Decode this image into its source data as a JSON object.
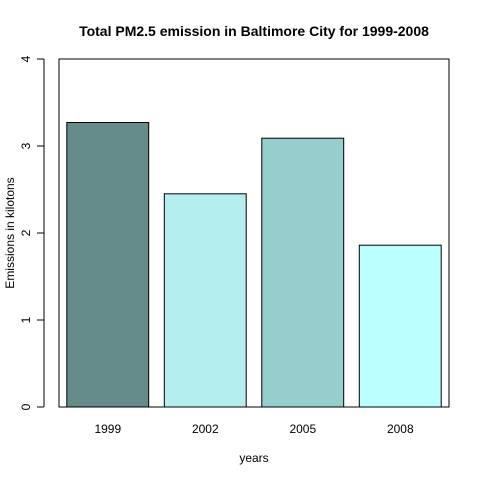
{
  "chart_data": {
    "type": "bar",
    "title": "Total PM2.5 emission in Baltimore City for 1999-2008",
    "xlabel": "years",
    "ylabel": "Emissions in kilotons",
    "categories": [
      "1999",
      "2002",
      "2005",
      "2008"
    ],
    "values": [
      3.27,
      2.45,
      3.09,
      1.86
    ],
    "ylim": [
      0,
      4
    ],
    "yticks": [
      0,
      1,
      2,
      3,
      4
    ],
    "ytick_labels": [
      "0",
      "1",
      "2",
      "3",
      "4"
    ],
    "colors": [
      "#668b8b",
      "#b4eeee",
      "#96cdcd",
      "#bbffff"
    ],
    "bar_border_color": "#000000",
    "grid": false,
    "legend": "none"
  }
}
